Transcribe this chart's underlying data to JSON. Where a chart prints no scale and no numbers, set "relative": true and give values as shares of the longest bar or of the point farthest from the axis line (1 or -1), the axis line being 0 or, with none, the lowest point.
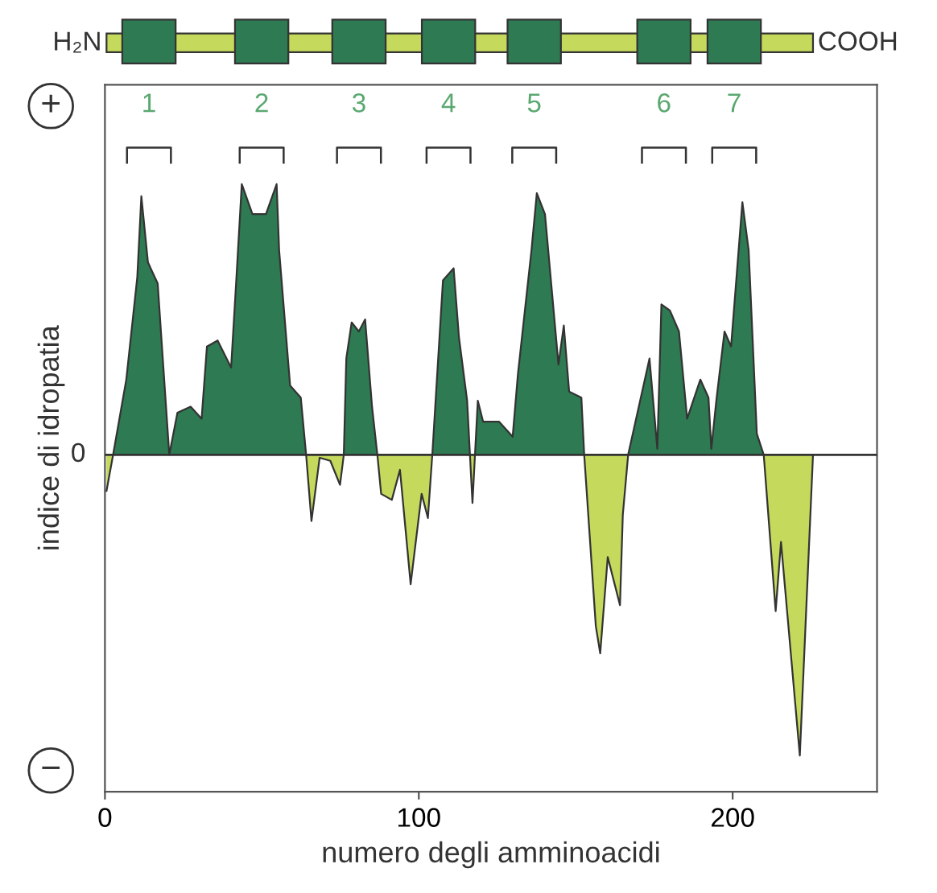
{
  "chart_data": {
    "type": "area",
    "relative": true,
    "xlabel": "numero degli amminoacidi",
    "ylabel": "indice di idropatia",
    "xlim": [
      0,
      246
    ],
    "xticks": [
      0,
      100,
      200
    ],
    "grid": false,
    "x": [
      0.5,
      2.6,
      6.8,
      10.3,
      11.6,
      13.7,
      15.0,
      16.8,
      20.5,
      23.1,
      27.3,
      30.8,
      32.5,
      35.9,
      40.2,
      41.9,
      43.6,
      47,
      51.3,
      54.7,
      55.5,
      59,
      62.4,
      64.1,
      65.8,
      68.4,
      71.8,
      74.9,
      76.1,
      76.9,
      78.6,
      80.9,
      82.9,
      85.1,
      86.8,
      88,
      91.4,
      94,
      97.4,
      100.9,
      102.9,
      104.3,
      107.7,
      111.1,
      112.8,
      115.4,
      116.3,
      117.1,
      117.9,
      118.8,
      120.5,
      125.6,
      129.9,
      131.6,
      135.9,
      137.6,
      140.2,
      144.5,
      146.2,
      147.9,
      151.8,
      152.7,
      156.4,
      157.8,
      160.2,
      164.1,
      165,
      166.7,
      173.5,
      176,
      177.3,
      180,
      182.9,
      185.5,
      189.7,
      192.3,
      193.2,
      194.9,
      197.4,
      199.5,
      203.1,
      205.1,
      207.7,
      209.9,
      213.7,
      215.4,
      221.4,
      225.6
    ],
    "series": [
      {
        "color": "#2e7a52",
        "values": [
          null,
          0,
          0.25,
          0.59,
          0.86,
          0.64,
          0.61,
          0.57,
          0,
          0.14,
          0.16,
          0.12,
          0.36,
          0.38,
          0.29,
          0.59,
          0.9,
          0.8,
          0.8,
          0.9,
          0.68,
          0.23,
          0.19,
          0,
          null,
          null,
          null,
          null,
          0,
          0.32,
          0.44,
          0.41,
          0.45,
          0.16,
          0,
          null,
          null,
          null,
          null,
          null,
          null,
          0,
          0.58,
          0.62,
          0.39,
          0.18,
          0,
          null,
          0,
          0.18,
          0.11,
          0.11,
          0.06,
          0.27,
          0.68,
          0.87,
          0.8,
          0.3,
          0.43,
          0.21,
          0.19,
          0,
          null,
          null,
          null,
          null,
          null,
          0,
          0.32,
          0.02,
          0.5,
          0.48,
          0.41,
          0.12,
          0.25,
          0.19,
          0.02,
          0.19,
          0.41,
          0.36,
          0.84,
          0.68,
          0.07,
          0,
          null,
          null,
          null,
          null
        ]
      },
      {
        "color": "#c5da5c",
        "values": [
          -0.12,
          0,
          null,
          null,
          null,
          null,
          null,
          null,
          null,
          null,
          null,
          null,
          null,
          null,
          null,
          null,
          null,
          null,
          null,
          null,
          null,
          null,
          null,
          0,
          -0.22,
          -0.01,
          -0.02,
          -0.1,
          0,
          null,
          null,
          null,
          null,
          null,
          0,
          -0.13,
          -0.15,
          -0.05,
          -0.43,
          -0.13,
          -0.21,
          0,
          null,
          null,
          null,
          null,
          0,
          -0.16,
          0,
          null,
          null,
          null,
          null,
          null,
          null,
          null,
          null,
          null,
          null,
          null,
          null,
          0,
          -0.57,
          -0.66,
          -0.34,
          -0.5,
          -0.2,
          0,
          null,
          null,
          null,
          null,
          null,
          null,
          null,
          null,
          null,
          null,
          null,
          null,
          null,
          null,
          null,
          0,
          -0.52,
          -0.29,
          -1,
          0
        ]
      }
    ],
    "annotations": [
      "+",
      "0",
      "−",
      "H₂N",
      "COOH",
      "1",
      "2",
      "3",
      "4",
      "5",
      "6",
      "7"
    ]
  }
}
